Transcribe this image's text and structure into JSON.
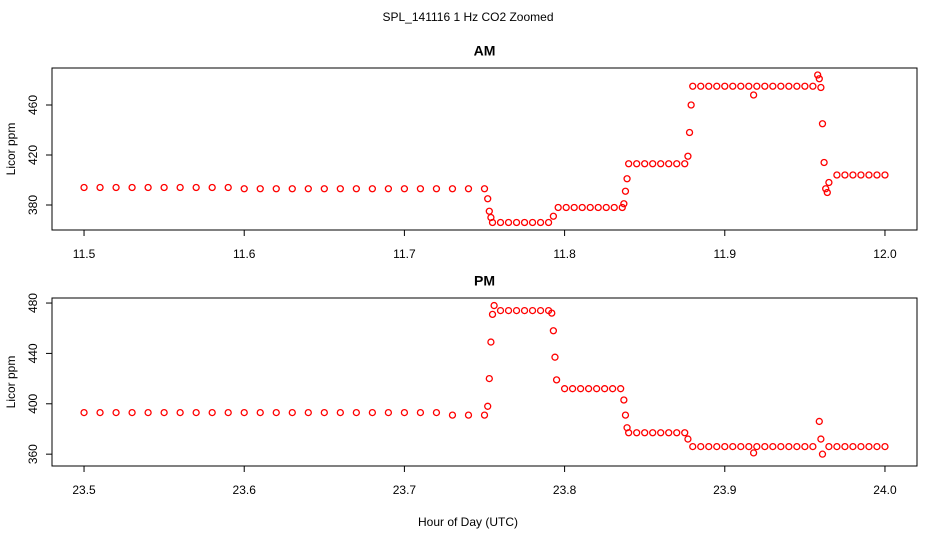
{
  "title": "SPL_141116  1 Hz CO2 Zoomed",
  "xlabel": "Hour of Day (UTC)",
  "chart_data": [
    {
      "type": "scatter",
      "title": "AM",
      "ylabel": "Licor ppm",
      "color": "#ff0000",
      "xlim": [
        11.48,
        12.02
      ],
      "ylim": [
        360,
        489.6
      ],
      "xticks": [
        11.5,
        11.6,
        11.7,
        11.8,
        11.9,
        {
          "value": 12,
          "label": "12.0"
        }
      ],
      "yticks": [
        380,
        420,
        460
      ],
      "x": [
        11.5,
        11.51,
        11.52,
        11.53,
        11.54,
        11.55,
        11.56,
        11.57,
        11.58,
        11.59,
        11.6,
        11.61,
        11.62,
        11.63,
        11.64,
        11.65,
        11.66,
        11.67,
        11.68,
        11.69,
        11.7,
        11.71,
        11.72,
        11.73,
        11.74,
        11.75,
        11.752,
        11.753,
        11.754,
        11.755,
        11.76,
        11.765,
        11.77,
        11.775,
        11.78,
        11.785,
        11.79,
        11.793,
        11.796,
        11.801,
        11.806,
        11.811,
        11.816,
        11.821,
        11.826,
        11.831,
        11.836,
        11.837,
        11.838,
        11.839,
        11.84,
        11.845,
        11.85,
        11.855,
        11.86,
        11.865,
        11.87,
        11.875,
        11.877,
        11.878,
        11.879,
        11.88,
        11.885,
        11.89,
        11.895,
        11.9,
        11.905,
        11.91,
        11.915,
        11.918,
        11.92,
        11.925,
        11.93,
        11.935,
        11.94,
        11.945,
        11.95,
        11.955,
        11.958,
        11.959,
        11.96,
        11.961,
        11.962,
        11.963,
        11.964,
        11.965,
        11.97,
        11.975,
        11.98,
        11.985,
        11.99,
        11.995,
        12.0
      ],
      "values": [
        394,
        394,
        394,
        394,
        394,
        394,
        394,
        394,
        394,
        394,
        393,
        393,
        393,
        393,
        393,
        393,
        393,
        393,
        393,
        393,
        393,
        393,
        393,
        393,
        393,
        393,
        385,
        375,
        370,
        366,
        366,
        366,
        366,
        366,
        366,
        366,
        366,
        371,
        378,
        378,
        378,
        378,
        378,
        378,
        378,
        378,
        378,
        381,
        391,
        401,
        413,
        413,
        413,
        413,
        413,
        413,
        413,
        413,
        419,
        438,
        460,
        475,
        475,
        475,
        475,
        475,
        475,
        475,
        475,
        468,
        475,
        475,
        475,
        475,
        475,
        475,
        475,
        475,
        484,
        481,
        474,
        445,
        414,
        393,
        390,
        398,
        404,
        404,
        404,
        404,
        404,
        404,
        404
      ]
    },
    {
      "type": "scatter",
      "title": "PM",
      "ylabel": "Licor ppm",
      "color": "#ff0000",
      "xlim": [
        23.48,
        24.02
      ],
      "ylim": [
        350.6,
        484
      ],
      "xticks": [
        23.5,
        23.6,
        23.7,
        23.8,
        23.9,
        {
          "value": 24,
          "label": "24.0"
        }
      ],
      "yticks": [
        360,
        400,
        440,
        480
      ],
      "x": [
        23.5,
        23.51,
        23.52,
        23.53,
        23.54,
        23.55,
        23.56,
        23.57,
        23.58,
        23.59,
        23.6,
        23.61,
        23.62,
        23.63,
        23.64,
        23.65,
        23.66,
        23.67,
        23.68,
        23.69,
        23.7,
        23.71,
        23.72,
        23.73,
        23.74,
        23.75,
        23.752,
        23.753,
        23.754,
        23.755,
        23.756,
        23.76,
        23.765,
        23.77,
        23.775,
        23.78,
        23.785,
        23.79,
        23.792,
        23.793,
        23.794,
        23.795,
        23.8,
        23.805,
        23.81,
        23.815,
        23.82,
        23.825,
        23.83,
        23.835,
        23.837,
        23.838,
        23.839,
        23.84,
        23.845,
        23.85,
        23.855,
        23.86,
        23.865,
        23.87,
        23.875,
        23.877,
        23.88,
        23.885,
        23.89,
        23.895,
        23.9,
        23.905,
        23.91,
        23.915,
        23.918,
        23.92,
        23.925,
        23.93,
        23.935,
        23.94,
        23.945,
        23.95,
        23.955,
        23.959,
        23.96,
        23.961,
        23.965,
        23.97,
        23.975,
        23.98,
        23.985,
        23.99,
        23.995,
        24.0
      ],
      "values": [
        393,
        393,
        393,
        393,
        393,
        393,
        393,
        393,
        393,
        393,
        393,
        393,
        393,
        393,
        393,
        393,
        393,
        393,
        393,
        393,
        393,
        393,
        393,
        391,
        391,
        391,
        398,
        420,
        449,
        471,
        478,
        474,
        474,
        474,
        474,
        474,
        474,
        474,
        472,
        458,
        437,
        419,
        412,
        412,
        412,
        412,
        412,
        412,
        412,
        412,
        403,
        391,
        381,
        377,
        377,
        377,
        377,
        377,
        377,
        377,
        377,
        372,
        366,
        366,
        366,
        366,
        366,
        366,
        366,
        366,
        361,
        366,
        366,
        366,
        366,
        366,
        366,
        366,
        366,
        386,
        372,
        360,
        366,
        366,
        366,
        366,
        366,
        366,
        366,
        366
      ]
    }
  ]
}
